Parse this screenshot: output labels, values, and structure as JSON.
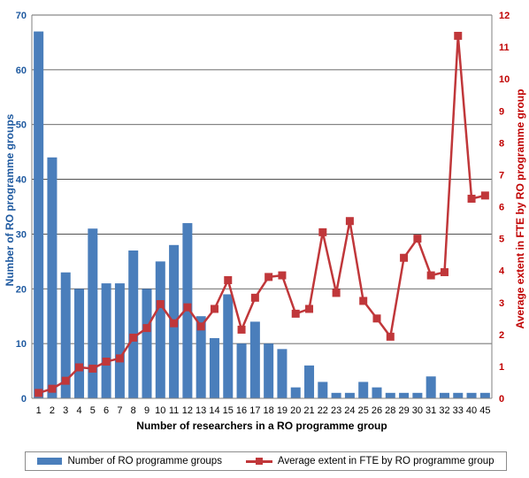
{
  "colors": {
    "bars": "#4a7ebb",
    "line": "#c0373a",
    "right_axis": "#c00000",
    "left_axis": "#1f5aa0",
    "grid": "#3a3a3a"
  },
  "chart_data": {
    "type": "bar+line",
    "categories": [
      "1",
      "2",
      "3",
      "4",
      "5",
      "6",
      "7",
      "8",
      "9",
      "10",
      "11",
      "12",
      "13",
      "14",
      "15",
      "16",
      "17",
      "18",
      "19",
      "20",
      "21",
      "22",
      "23",
      "24",
      "25",
      "26",
      "28",
      "29",
      "30",
      "31",
      "32",
      "33",
      "40",
      "45"
    ],
    "series": [
      {
        "name": "Number of RO programme groups",
        "type": "bar",
        "axis": "left",
        "values": [
          67,
          44,
          23,
          20,
          31,
          21,
          21,
          27,
          20,
          25,
          28,
          32,
          15,
          11,
          19,
          10,
          14,
          10,
          9,
          2,
          6,
          3,
          1,
          1,
          3,
          2,
          1,
          1,
          1,
          4,
          1,
          1,
          1,
          1
        ]
      },
      {
        "name": "Average extent in FTE by RO programme group",
        "type": "line",
        "axis": "right",
        "values": [
          0.17,
          0.3,
          0.55,
          0.97,
          0.93,
          1.15,
          1.25,
          1.9,
          2.2,
          2.95,
          2.35,
          2.85,
          2.25,
          2.8,
          3.7,
          2.15,
          3.15,
          3.8,
          3.85,
          2.65,
          2.8,
          5.2,
          3.3,
          5.55,
          3.05,
          2.5,
          1.93,
          4.4,
          5.0,
          3.85,
          3.95,
          11.35,
          6.25,
          6.35
        ]
      }
    ],
    "xlabel": "Number of researchers in a RO programme group",
    "ylabel": "Number of RO programme groups",
    "y2label": "Average extent in FTE by RO programme group",
    "ylim": [
      0,
      70
    ],
    "y2lim": [
      0,
      12
    ],
    "yticks": [
      "0",
      "10",
      "20",
      "30",
      "40",
      "50",
      "60",
      "70"
    ],
    "y2ticks": [
      "0",
      "1",
      "2",
      "3",
      "4",
      "5",
      "6",
      "7",
      "8",
      "9",
      "10",
      "11",
      "12"
    ],
    "grid": true,
    "legend_position": "bottom"
  }
}
